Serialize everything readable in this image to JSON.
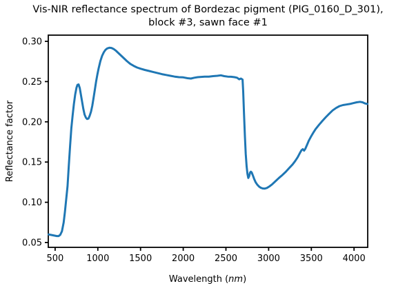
{
  "figure": {
    "title_line1": "Vis-NIR reflectance spectrum of Bordezac pigment (PIG_0160_D_301),",
    "title_line2": "block #3, sawn face #1"
  },
  "axes": {
    "xlabel_prefix": "Wavelength (",
    "xlabel_unit": "nm",
    "xlabel_suffix": ")",
    "ylabel": "Reflectance factor"
  },
  "chart_data": {
    "type": "line",
    "title": "Vis-NIR reflectance spectrum of Bordezac pigment (PIG_0160_D_301), block #3, sawn face #1",
    "xlabel": "Wavelength (nm)",
    "ylabel": "Reflectance factor",
    "line_color": "#1f77b4",
    "axis_color": "#000000",
    "grid": false,
    "legend": false,
    "xlim": [
      420,
      4160
    ],
    "ylim": [
      0.044,
      0.3077
    ],
    "x_ticks": [
      500,
      1000,
      1500,
      2000,
      2500,
      3000,
      3500,
      4000
    ],
    "y_ticks": [
      0.05,
      0.1,
      0.15,
      0.2,
      0.25,
      0.3
    ],
    "series": [
      {
        "name": "reflectance",
        "points": [
          [
            425,
            0.06
          ],
          [
            450,
            0.0595
          ],
          [
            475,
            0.059
          ],
          [
            500,
            0.0585
          ],
          [
            520,
            0.058
          ],
          [
            540,
            0.058
          ],
          [
            560,
            0.0595
          ],
          [
            580,
            0.064
          ],
          [
            600,
            0.075
          ],
          [
            615,
            0.088
          ],
          [
            630,
            0.104
          ],
          [
            645,
            0.12
          ],
          [
            660,
            0.145
          ],
          [
            675,
            0.17
          ],
          [
            690,
            0.192
          ],
          [
            705,
            0.208
          ],
          [
            720,
            0.222
          ],
          [
            735,
            0.234
          ],
          [
            750,
            0.2425
          ],
          [
            762,
            0.246
          ],
          [
            775,
            0.2465
          ],
          [
            788,
            0.242
          ],
          [
            800,
            0.235
          ],
          [
            815,
            0.2255
          ],
          [
            830,
            0.216
          ],
          [
            845,
            0.209
          ],
          [
            860,
            0.2052
          ],
          [
            875,
            0.2035
          ],
          [
            890,
            0.204
          ],
          [
            905,
            0.2075
          ],
          [
            920,
            0.2125
          ],
          [
            935,
            0.22
          ],
          [
            950,
            0.2295
          ],
          [
            965,
            0.24
          ],
          [
            980,
            0.25
          ],
          [
            995,
            0.259
          ],
          [
            1010,
            0.2665
          ],
          [
            1030,
            0.2755
          ],
          [
            1050,
            0.282
          ],
          [
            1070,
            0.2865
          ],
          [
            1090,
            0.2895
          ],
          [
            1110,
            0.2912
          ],
          [
            1135,
            0.292
          ],
          [
            1160,
            0.2918
          ],
          [
            1185,
            0.2905
          ],
          [
            1210,
            0.2885
          ],
          [
            1240,
            0.2855
          ],
          [
            1270,
            0.2825
          ],
          [
            1300,
            0.2795
          ],
          [
            1340,
            0.2755
          ],
          [
            1380,
            0.272
          ],
          [
            1420,
            0.2695
          ],
          [
            1460,
            0.2675
          ],
          [
            1500,
            0.266
          ],
          [
            1550,
            0.2645
          ],
          [
            1600,
            0.2632
          ],
          [
            1650,
            0.2618
          ],
          [
            1700,
            0.2605
          ],
          [
            1750,
            0.2592
          ],
          [
            1800,
            0.2582
          ],
          [
            1850,
            0.2572
          ],
          [
            1900,
            0.2562
          ],
          [
            1950,
            0.2555
          ],
          [
            2000,
            0.2552
          ],
          [
            2050,
            0.2542
          ],
          [
            2090,
            0.2538
          ],
          [
            2130,
            0.2548
          ],
          [
            2170,
            0.2555
          ],
          [
            2210,
            0.2558
          ],
          [
            2250,
            0.2562
          ],
          [
            2300,
            0.2562
          ],
          [
            2350,
            0.2568
          ],
          [
            2400,
            0.2572
          ],
          [
            2440,
            0.2578
          ],
          [
            2480,
            0.2568
          ],
          [
            2520,
            0.2562
          ],
          [
            2560,
            0.256
          ],
          [
            2600,
            0.2555
          ],
          [
            2630,
            0.2548
          ],
          [
            2655,
            0.2528
          ],
          [
            2675,
            0.2538
          ],
          [
            2695,
            0.2525
          ],
          [
            2702,
            0.238
          ],
          [
            2712,
            0.21
          ],
          [
            2722,
            0.182
          ],
          [
            2732,
            0.16
          ],
          [
            2742,
            0.1445
          ],
          [
            2752,
            0.1352
          ],
          [
            2762,
            0.1302
          ],
          [
            2772,
            0.1325
          ],
          [
            2782,
            0.1368
          ],
          [
            2792,
            0.138
          ],
          [
            2802,
            0.137
          ],
          [
            2815,
            0.1335
          ],
          [
            2830,
            0.129
          ],
          [
            2848,
            0.1248
          ],
          [
            2865,
            0.1222
          ],
          [
            2885,
            0.1198
          ],
          [
            2905,
            0.1182
          ],
          [
            2930,
            0.1172
          ],
          [
            2955,
            0.117
          ],
          [
            2980,
            0.1178
          ],
          [
            3010,
            0.1198
          ],
          [
            3040,
            0.1222
          ],
          [
            3080,
            0.1262
          ],
          [
            3120,
            0.1302
          ],
          [
            3160,
            0.1338
          ],
          [
            3200,
            0.1378
          ],
          [
            3240,
            0.1425
          ],
          [
            3280,
            0.147
          ],
          [
            3310,
            0.1512
          ],
          [
            3340,
            0.156
          ],
          [
            3365,
            0.161
          ],
          [
            3385,
            0.1648
          ],
          [
            3400,
            0.166
          ],
          [
            3415,
            0.1642
          ],
          [
            3430,
            0.1665
          ],
          [
            3450,
            0.1715
          ],
          [
            3470,
            0.1765
          ],
          [
            3495,
            0.1815
          ],
          [
            3520,
            0.186
          ],
          [
            3550,
            0.191
          ],
          [
            3590,
            0.1962
          ],
          [
            3630,
            0.2012
          ],
          [
            3670,
            0.2058
          ],
          [
            3710,
            0.2102
          ],
          [
            3750,
            0.2142
          ],
          [
            3790,
            0.2172
          ],
          [
            3830,
            0.2195
          ],
          [
            3870,
            0.2208
          ],
          [
            3910,
            0.2215
          ],
          [
            3950,
            0.2222
          ],
          [
            3990,
            0.2232
          ],
          [
            4030,
            0.2242
          ],
          [
            4070,
            0.2248
          ],
          [
            4100,
            0.2242
          ],
          [
            4130,
            0.2228
          ],
          [
            4155,
            0.2222
          ]
        ]
      }
    ]
  }
}
